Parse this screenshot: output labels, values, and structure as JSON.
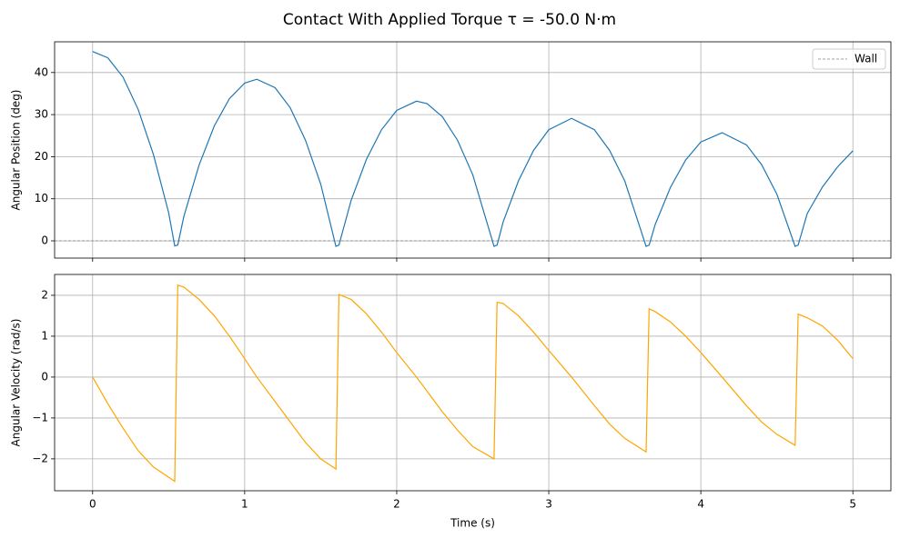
{
  "title": "Contact With Applied Torque τ = -50.0 N·m",
  "chart_data": [
    {
      "type": "line",
      "ylabel": "Angular Position (deg)",
      "x": [
        0,
        0.1,
        0.2,
        0.3,
        0.4,
        0.5,
        0.54,
        0.56,
        0.6,
        0.7,
        0.8,
        0.9,
        1.0,
        1.08,
        1.2,
        1.3,
        1.4,
        1.5,
        1.6,
        1.62,
        1.7,
        1.8,
        1.9,
        2.0,
        2.13,
        2.2,
        2.3,
        2.4,
        2.5,
        2.64,
        2.66,
        2.7,
        2.8,
        2.9,
        3.0,
        3.15,
        3.3,
        3.4,
        3.5,
        3.64,
        3.66,
        3.7,
        3.8,
        3.9,
        4.0,
        4.14,
        4.3,
        4.4,
        4.5,
        4.62,
        4.64,
        4.7,
        4.8,
        4.9,
        5.0
      ],
      "series": [
        {
          "name": "Angular Position",
          "color": "#1f77b4",
          "values": [
            45,
            43.5,
            38.9,
            31.2,
            20.5,
            6.7,
            -1.2,
            -1.0,
            5.8,
            18.0,
            27.3,
            33.8,
            37.5,
            38.4,
            36.4,
            31.6,
            23.9,
            13.5,
            -1.3,
            -1.0,
            9.6,
            19.3,
            26.4,
            31.0,
            33.2,
            32.6,
            29.5,
            23.9,
            15.7,
            -1.3,
            -1.0,
            4.5,
            14.2,
            21.5,
            26.4,
            29.1,
            26.4,
            21.5,
            14.2,
            -1.3,
            -1.0,
            3.9,
            12.7,
            19.2,
            23.5,
            25.7,
            22.8,
            18.1,
            11.1,
            -1.3,
            -1.0,
            6.5,
            12.8,
            17.6,
            21.4
          ]
        }
      ],
      "reference_lines": [
        {
          "name": "Wall",
          "value": 0,
          "color": "#808080",
          "style": "dashed"
        }
      ],
      "xlim": [
        -0.25,
        5.25
      ],
      "xticks": [
        0,
        1,
        2,
        3,
        4,
        5
      ],
      "show_xtick_labels": false,
      "ylim": [
        -4.1,
        47.3
      ],
      "yticks": [
        0,
        10,
        20,
        30,
        40
      ],
      "grid": true,
      "legend": "upper-right"
    },
    {
      "type": "line",
      "xlabel": "Time (s)",
      "ylabel": "Angular Velocity (rad/s)",
      "x": [
        0,
        0.1,
        0.2,
        0.3,
        0.4,
        0.5,
        0.54,
        0.56,
        0.6,
        0.7,
        0.8,
        0.9,
        1.0,
        1.08,
        1.2,
        1.3,
        1.4,
        1.5,
        1.6,
        1.62,
        1.7,
        1.8,
        1.9,
        2.0,
        2.13,
        2.2,
        2.3,
        2.4,
        2.5,
        2.64,
        2.66,
        2.7,
        2.8,
        2.9,
        3.0,
        3.15,
        3.3,
        3.4,
        3.5,
        3.64,
        3.66,
        3.7,
        3.8,
        3.9,
        4.0,
        4.14,
        4.3,
        4.4,
        4.5,
        4.62,
        4.64,
        4.7,
        4.8,
        4.9,
        5.0
      ],
      "series": [
        {
          "name": "Angular Velocity",
          "color": "#ffa500",
          "values": [
            0,
            -0.65,
            -1.25,
            -1.8,
            -2.2,
            -2.45,
            -2.55,
            2.25,
            2.2,
            1.9,
            1.5,
            1.0,
            0.45,
            0.0,
            -0.6,
            -1.1,
            -1.6,
            -2.0,
            -2.25,
            2.02,
            1.9,
            1.55,
            1.1,
            0.6,
            0.0,
            -0.35,
            -0.85,
            -1.3,
            -1.7,
            -2.0,
            1.83,
            1.8,
            1.5,
            1.1,
            0.65,
            0.0,
            -0.7,
            -1.15,
            -1.5,
            -1.83,
            1.67,
            1.6,
            1.35,
            1.0,
            0.6,
            0.0,
            -0.7,
            -1.1,
            -1.4,
            -1.67,
            1.54,
            1.45,
            1.25,
            0.9,
            0.45
          ]
        }
      ],
      "xlim": [
        -0.25,
        5.25
      ],
      "xticks": [
        0,
        1,
        2,
        3,
        4,
        5
      ],
      "show_xtick_labels": true,
      "ylim": [
        -2.78,
        2.51
      ],
      "yticks": [
        {
          "value": -2,
          "label": "−2"
        },
        {
          "value": -1,
          "label": "−1"
        },
        0,
        1,
        2
      ],
      "grid": true
    }
  ]
}
